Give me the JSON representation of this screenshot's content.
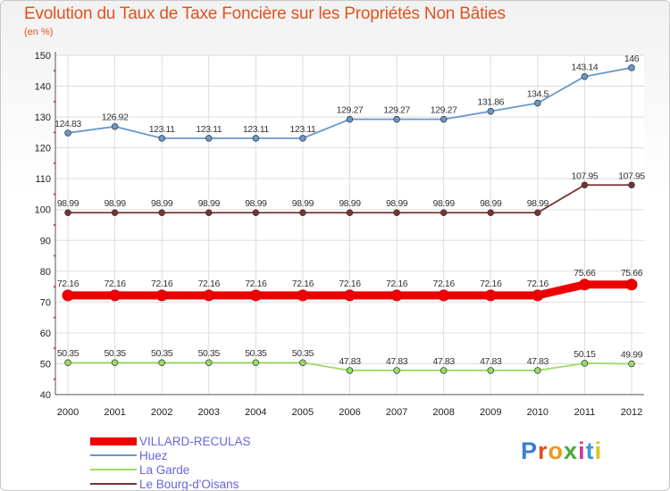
{
  "title": "Evolution du Taux de Taxe Foncière sur les Propriétés Non Bâties",
  "unit": "(en %)",
  "logo": "Proxiti",
  "chart_data": {
    "type": "line",
    "categories": [
      "2000",
      "2001",
      "2002",
      "2003",
      "2004",
      "2005",
      "2006",
      "2007",
      "2008",
      "2009",
      "2010",
      "2011",
      "2012"
    ],
    "ylim": [
      40,
      150
    ],
    "yticks": [
      40,
      50,
      60,
      70,
      80,
      90,
      100,
      110,
      120,
      130,
      140,
      150
    ],
    "grid": true,
    "legend_position": "bottom-left",
    "series": [
      {
        "name": "VILLARD-RECULAS",
        "color": "#ee0000",
        "highlight": true,
        "values": [
          72.16,
          72.16,
          72.16,
          72.16,
          72.16,
          72.16,
          72.16,
          72.16,
          72.16,
          72.16,
          72.16,
          75.66,
          75.66
        ],
        "labels": [
          "72.16",
          "72.16",
          "72.16",
          "72.16",
          "72.16",
          "72.16",
          "72.16",
          "72.16",
          "72.16",
          "72.16",
          "72.16",
          "75.66",
          "75.66"
        ]
      },
      {
        "name": "Huez",
        "color": "#6699cc",
        "values": [
          124.83,
          126.92,
          123.11,
          123.11,
          123.11,
          123.11,
          129.27,
          129.27,
          129.27,
          131.86,
          134.5,
          143.14,
          146
        ],
        "labels": [
          "124.83",
          "126.92",
          "123.11",
          "123.11",
          "123.11",
          "123.11",
          "129.27",
          "129.27",
          "129.27",
          "131.86",
          "134.5",
          "143.14",
          "146"
        ]
      },
      {
        "name": "La Garde",
        "color": "#99dd66",
        "values": [
          50.35,
          50.35,
          50.35,
          50.35,
          50.35,
          50.35,
          47.83,
          47.83,
          47.83,
          47.83,
          47.83,
          50.15,
          49.99
        ],
        "labels": [
          "50.35",
          "50.35",
          "50.35",
          "50.35",
          "50.35",
          "50.35",
          "47.83",
          "47.83",
          "47.83",
          "47.83",
          "47.83",
          "50.15",
          "49.99"
        ]
      },
      {
        "name": "Le Bourg-d'Oisans",
        "color": "#773333",
        "values": [
          98.99,
          98.99,
          98.99,
          98.99,
          98.99,
          98.99,
          98.99,
          98.99,
          98.99,
          98.99,
          98.99,
          107.95,
          107.95
        ],
        "labels": [
          "98.99",
          "98.99",
          "98.99",
          "98.99",
          "98.99",
          "98.99",
          "98.99",
          "98.99",
          "98.99",
          "98.99",
          "98.99",
          "107.95",
          "107.95"
        ]
      }
    ]
  }
}
